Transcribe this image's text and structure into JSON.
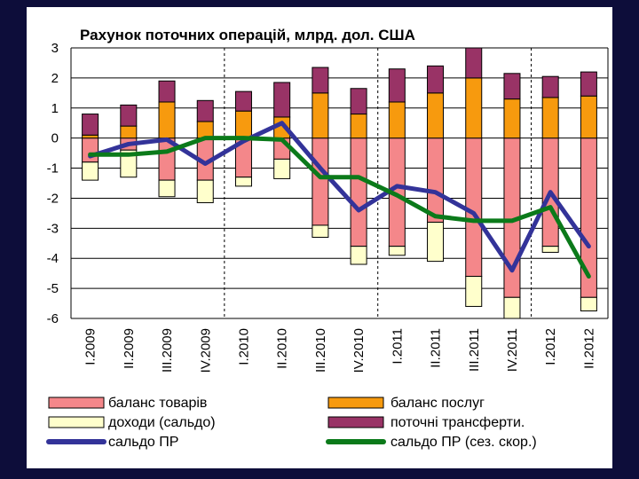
{
  "chart_data": {
    "type": "bar",
    "stacked": true,
    "title": "Рахунок поточних операцій, млрд. дол. США",
    "ylim": [
      -6,
      3
    ],
    "yticks": [
      3,
      2,
      1,
      0,
      -1,
      -2,
      -3,
      -4,
      -5,
      -6
    ],
    "categories": [
      "I.2009",
      "II.2009",
      "III.2009",
      "IV.2009",
      "I.2010",
      "II.2010",
      "III.2010",
      "IV.2010",
      "I.2011",
      "II.2011",
      "III.2011",
      "IV.2011",
      "I.2012",
      "II.2012"
    ],
    "series": [
      {
        "name": "баланс товарів",
        "color": "#f4878a",
        "values": [
          -0.8,
          -0.4,
          -1.4,
          -1.4,
          -1.3,
          -0.7,
          -2.9,
          -3.6,
          -3.6,
          -2.8,
          -4.6,
          -5.3,
          -3.6,
          -5.3
        ]
      },
      {
        "name": "баланс послуг",
        "color": "#f79a0e",
        "values": [
          0.1,
          0.4,
          1.2,
          0.55,
          0.9,
          0.7,
          1.5,
          0.8,
          1.2,
          1.5,
          2.0,
          1.3,
          1.35,
          1.4
        ]
      },
      {
        "name": "доходи (сальдо)",
        "color": "#ffffcc",
        "values": [
          -0.6,
          -0.9,
          -0.55,
          -0.75,
          -0.3,
          -0.65,
          -0.4,
          -0.6,
          -0.3,
          -1.3,
          -1.0,
          -0.95,
          -0.2,
          -0.45
        ]
      },
      {
        "name": "поточні трансферти.",
        "color": "#993366",
        "values": [
          0.7,
          0.7,
          0.7,
          0.7,
          0.65,
          1.15,
          0.85,
          0.85,
          1.1,
          0.9,
          1.0,
          0.85,
          0.7,
          0.8
        ]
      }
    ],
    "lines": [
      {
        "name": "сальдо ПР",
        "color": "#333399",
        "values": [
          -0.6,
          -0.2,
          -0.05,
          -0.85,
          -0.1,
          0.5,
          -1.0,
          -2.4,
          -1.6,
          -1.8,
          -2.5,
          -4.4,
          -1.8,
          -3.6
        ]
      },
      {
        "name": "сальдо ПР (сез. скор.)",
        "color": "#0b7a1a",
        "values": [
          -0.55,
          -0.55,
          -0.45,
          0.0,
          0.0,
          -0.05,
          -1.3,
          -1.3,
          -1.9,
          -2.6,
          -2.75,
          -2.75,
          -2.3,
          -4.6
        ]
      }
    ],
    "legend": {
      "rows": [
        [
          "баланс товарів",
          "баланс послуг"
        ],
        [
          "доходи (сальдо)",
          "поточні трансферти."
        ],
        [
          "сальдо ПР",
          "сальдо ПР (сез. скор.)"
        ]
      ]
    },
    "year_separators_after": [
      3,
      7,
      11
    ]
  }
}
